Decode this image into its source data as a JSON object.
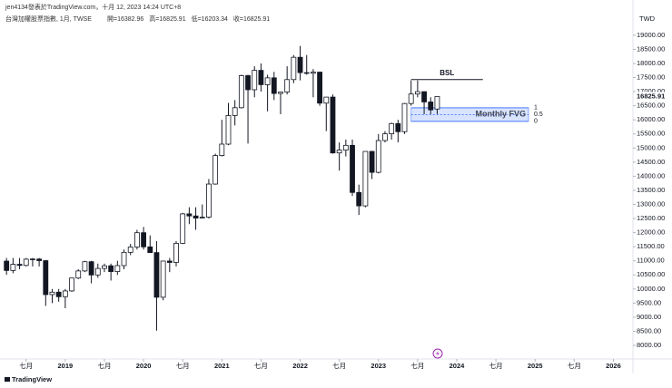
{
  "chart_data": {
    "type": "candlestick",
    "byline": "jen4134發表於TradingView.com，十月 12, 2023 14:24 UTC+8",
    "title": "台灣加權股票指數, 1月, TWSE",
    "ohlc_labels": [
      "開=16382.96",
      "高=16825.91",
      "低=16203.34",
      "收=16825.91"
    ],
    "currency": "TWD",
    "brand": "TradingView",
    "x": [
      "2018-04",
      "2018-05",
      "2018-06",
      "2018-07",
      "2018-08",
      "2018-09",
      "2018-10",
      "2018-11",
      "2018-12",
      "2019-01",
      "2019-02",
      "2019-03",
      "2019-04",
      "2019-05",
      "2019-06",
      "2019-07",
      "2019-08",
      "2019-09",
      "2019-10",
      "2019-11",
      "2019-12",
      "2020-01",
      "2020-02",
      "2020-03",
      "2020-04",
      "2020-05",
      "2020-06",
      "2020-07",
      "2020-08",
      "2020-09",
      "2020-10",
      "2020-11",
      "2020-12",
      "2021-01",
      "2021-02",
      "2021-03",
      "2021-04",
      "2021-05",
      "2021-06",
      "2021-07",
      "2021-08",
      "2021-09",
      "2021-10",
      "2021-11",
      "2021-12",
      "2022-01",
      "2022-02",
      "2022-03",
      "2022-04",
      "2022-05",
      "2022-06",
      "2022-07",
      "2022-08",
      "2022-09",
      "2022-10",
      "2022-11",
      "2022-12",
      "2023-01",
      "2023-02",
      "2023-03",
      "2023-04",
      "2023-05",
      "2023-06",
      "2023-07",
      "2023-08",
      "2023-09",
      "2023-10"
    ],
    "open": [
      10990,
      10657,
      10875,
      10836,
      11057,
      11063,
      11006,
      9802,
      9888,
      9727,
      9932,
      10389,
      10641,
      10968,
      10498,
      10730,
      10824,
      10618,
      10830,
      11300,
      11489,
      11997,
      11495,
      11292,
      9708,
      10992,
      10942,
      11621,
      12665,
      12591,
      12516,
      12546,
      13722,
      14733,
      15138,
      16152,
      16431,
      17567,
      17068,
      17755,
      17247,
      17490,
      16935,
      16987,
      17428,
      18219,
      17674,
      17652,
      17693,
      16592,
      16807,
      14826,
      14926,
      15095,
      13425,
      12949,
      14880,
      14138,
      15265,
      15504,
      15868,
      15579,
      16579,
      16916,
      16999,
      16634,
      16382.96
    ],
    "high": [
      11100,
      11100,
      11100,
      11100,
      11100,
      11100,
      11030,
      10000,
      10000,
      10000,
      10400,
      10700,
      11000,
      11000,
      10900,
      10900,
      10900,
      11000,
      11400,
      11600,
      12100,
      12200,
      11900,
      11700,
      10900,
      11100,
      11700,
      12700,
      12900,
      12900,
      13000,
      13900,
      14800,
      16000,
      16600,
      16700,
      17600,
      17600,
      17900,
      18000,
      17600,
      17700,
      17000,
      17900,
      18300,
      18620,
      18300,
      17800,
      17700,
      16700,
      16900,
      15200,
      15300,
      15300,
      13700,
      14800,
      14900,
      15500,
      15600,
      15900,
      16000,
      16600,
      17400,
      17400,
      17000,
      16800,
      16825.91
    ],
    "low": [
      10500,
      10560,
      10700,
      10800,
      10800,
      10800,
      9400,
      9500,
      9550,
      9319,
      9900,
      10350,
      10600,
      10200,
      10400,
      10600,
      10300,
      10500,
      10700,
      11200,
      11400,
      11400,
      11300,
      8523,
      9600,
      10600,
      10800,
      11600,
      12300,
      12100,
      12500,
      12500,
      13700,
      14700,
      15100,
      15800,
      16400,
      15160,
      16800,
      17000,
      16300,
      16700,
      16200,
      16900,
      17300,
      17400,
      17600,
      16800,
      16500,
      15600,
      14800,
      14200,
      14700,
      13300,
      12630,
      12900,
      13900,
      14100,
      15200,
      15300,
      15200,
      15500,
      16500,
      16800,
      16200,
      16200,
      16203.34
    ],
    "close": [
      10657,
      10875,
      10836,
      11057,
      11063,
      11006,
      9802,
      9888,
      9727,
      9932,
      10389,
      10641,
      10968,
      10498,
      10730,
      10824,
      10618,
      10830,
      11300,
      11489,
      11997,
      11495,
      11292,
      9708,
      10992,
      10942,
      11621,
      12665,
      12591,
      12516,
      12546,
      13722,
      14733,
      15138,
      16152,
      16431,
      17567,
      17068,
      17755,
      17247,
      17490,
      16935,
      16987,
      17428,
      18219,
      17674,
      17652,
      17693,
      16592,
      16807,
      14826,
      14926,
      15095,
      13425,
      12949,
      14880,
      14138,
      15265,
      15504,
      15868,
      15579,
      16579,
      16916,
      16999,
      16634,
      16353,
      16825.91
    ],
    "up_color": "#ffffff",
    "down_color": "#131722",
    "wick_color": "#131722",
    "xlim": [
      "2018-03",
      "2026-04"
    ],
    "xticks": [
      {
        "value": "2018-07",
        "label": "七月"
      },
      {
        "value": "2019-01",
        "label": "2019"
      },
      {
        "value": "2019-07",
        "label": "七月"
      },
      {
        "value": "2020-01",
        "label": "2020"
      },
      {
        "value": "2020-07",
        "label": "七月"
      },
      {
        "value": "2021-01",
        "label": "2021"
      },
      {
        "value": "2021-07",
        "label": "七月"
      },
      {
        "value": "2022-01",
        "label": "2022"
      },
      {
        "value": "2022-07",
        "label": "七月"
      },
      {
        "value": "2023-01",
        "label": "2023"
      },
      {
        "value": "2023-07",
        "label": "七月"
      },
      {
        "value": "2024-01",
        "label": "2024"
      },
      {
        "value": "2024-07",
        "label": "七月"
      },
      {
        "value": "2025-01",
        "label": "2025"
      },
      {
        "value": "2025-07",
        "label": "七月"
      },
      {
        "value": "2026-01",
        "label": "2026"
      }
    ],
    "ylim": [
      7550,
      19800
    ],
    "yticks": [
      {
        "value": 8000,
        "label": "8000.00"
      },
      {
        "value": 8500,
        "label": "8500.00"
      },
      {
        "value": 9000,
        "label": "9000.00"
      },
      {
        "value": 9500,
        "label": "9500.00"
      },
      {
        "value": 10000,
        "label": "10000.00"
      },
      {
        "value": 10500,
        "label": "10500.00"
      },
      {
        "value": 11000,
        "label": "11000.00"
      },
      {
        "value": 11500,
        "label": "11500.00"
      },
      {
        "value": 12000,
        "label": "12000.00"
      },
      {
        "value": 12500,
        "label": "12500.00"
      },
      {
        "value": 13000,
        "label": "13000.00"
      },
      {
        "value": 13500,
        "label": "13500.00"
      },
      {
        "value": 14000,
        "label": "14000.00"
      },
      {
        "value": 14500,
        "label": "14500.00"
      },
      {
        "value": 15000,
        "label": "15000.00"
      },
      {
        "value": 15500,
        "label": "15500.00"
      },
      {
        "value": 16000,
        "label": "16000.00"
      },
      {
        "value": 16500,
        "label": "16500.00"
      },
      {
        "value": 17000,
        "label": "17000.00"
      },
      {
        "value": 17500,
        "label": "17500.00"
      },
      {
        "value": 18000,
        "label": "18000.00"
      },
      {
        "value": 18500,
        "label": "18500.00"
      },
      {
        "value": 19000,
        "label": "19000.00"
      }
    ],
    "bsl": {
      "label": "BSL",
      "price": 17430,
      "x": [
        "2023-06",
        "2024-05"
      ]
    },
    "fvg": {
      "label": "Monthly FVG",
      "top": 16428,
      "bottom": 15946,
      "x": [
        "2023-06",
        "2024-12"
      ],
      "levels": [
        1,
        0.5,
        0
      ],
      "color": "#2962ff"
    }
  }
}
